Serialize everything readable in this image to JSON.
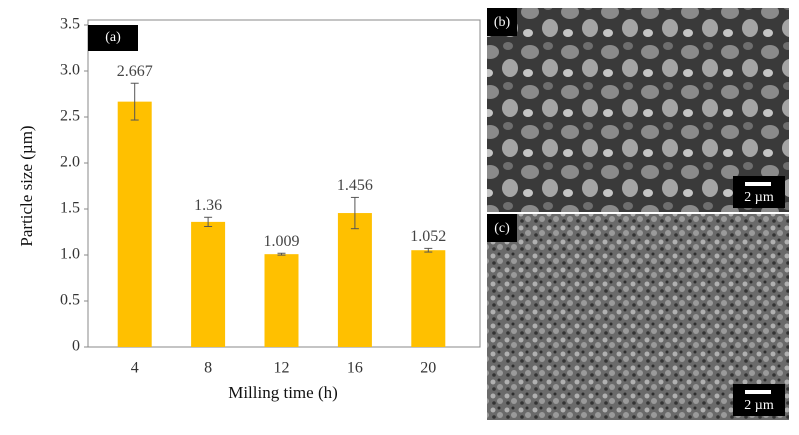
{
  "chart_data": {
    "type": "bar",
    "panel_label": "(a)",
    "x_label": "Milling time (h)",
    "y_label": "Particle size (µm)",
    "categories": [
      "4",
      "8",
      "12",
      "16",
      "20"
    ],
    "values": [
      2.667,
      1.36,
      1.009,
      1.456,
      1.052
    ],
    "errors": [
      0.2,
      0.05,
      0.01,
      0.17,
      0.02
    ],
    "color": "#ffc000",
    "ylim": [
      0,
      3.5
    ],
    "yticks": [
      0,
      0.5,
      {
        "value": 1,
        "label": "1.0"
      },
      1.5,
      {
        "value": 2,
        "label": "2.0"
      },
      2.5,
      {
        "value": 3,
        "label": "3.0"
      },
      3.5
    ]
  },
  "images": [
    {
      "label": "(b)",
      "scale_bar": "2 µm"
    },
    {
      "label": "(c)",
      "scale_bar": "2 µm"
    }
  ]
}
